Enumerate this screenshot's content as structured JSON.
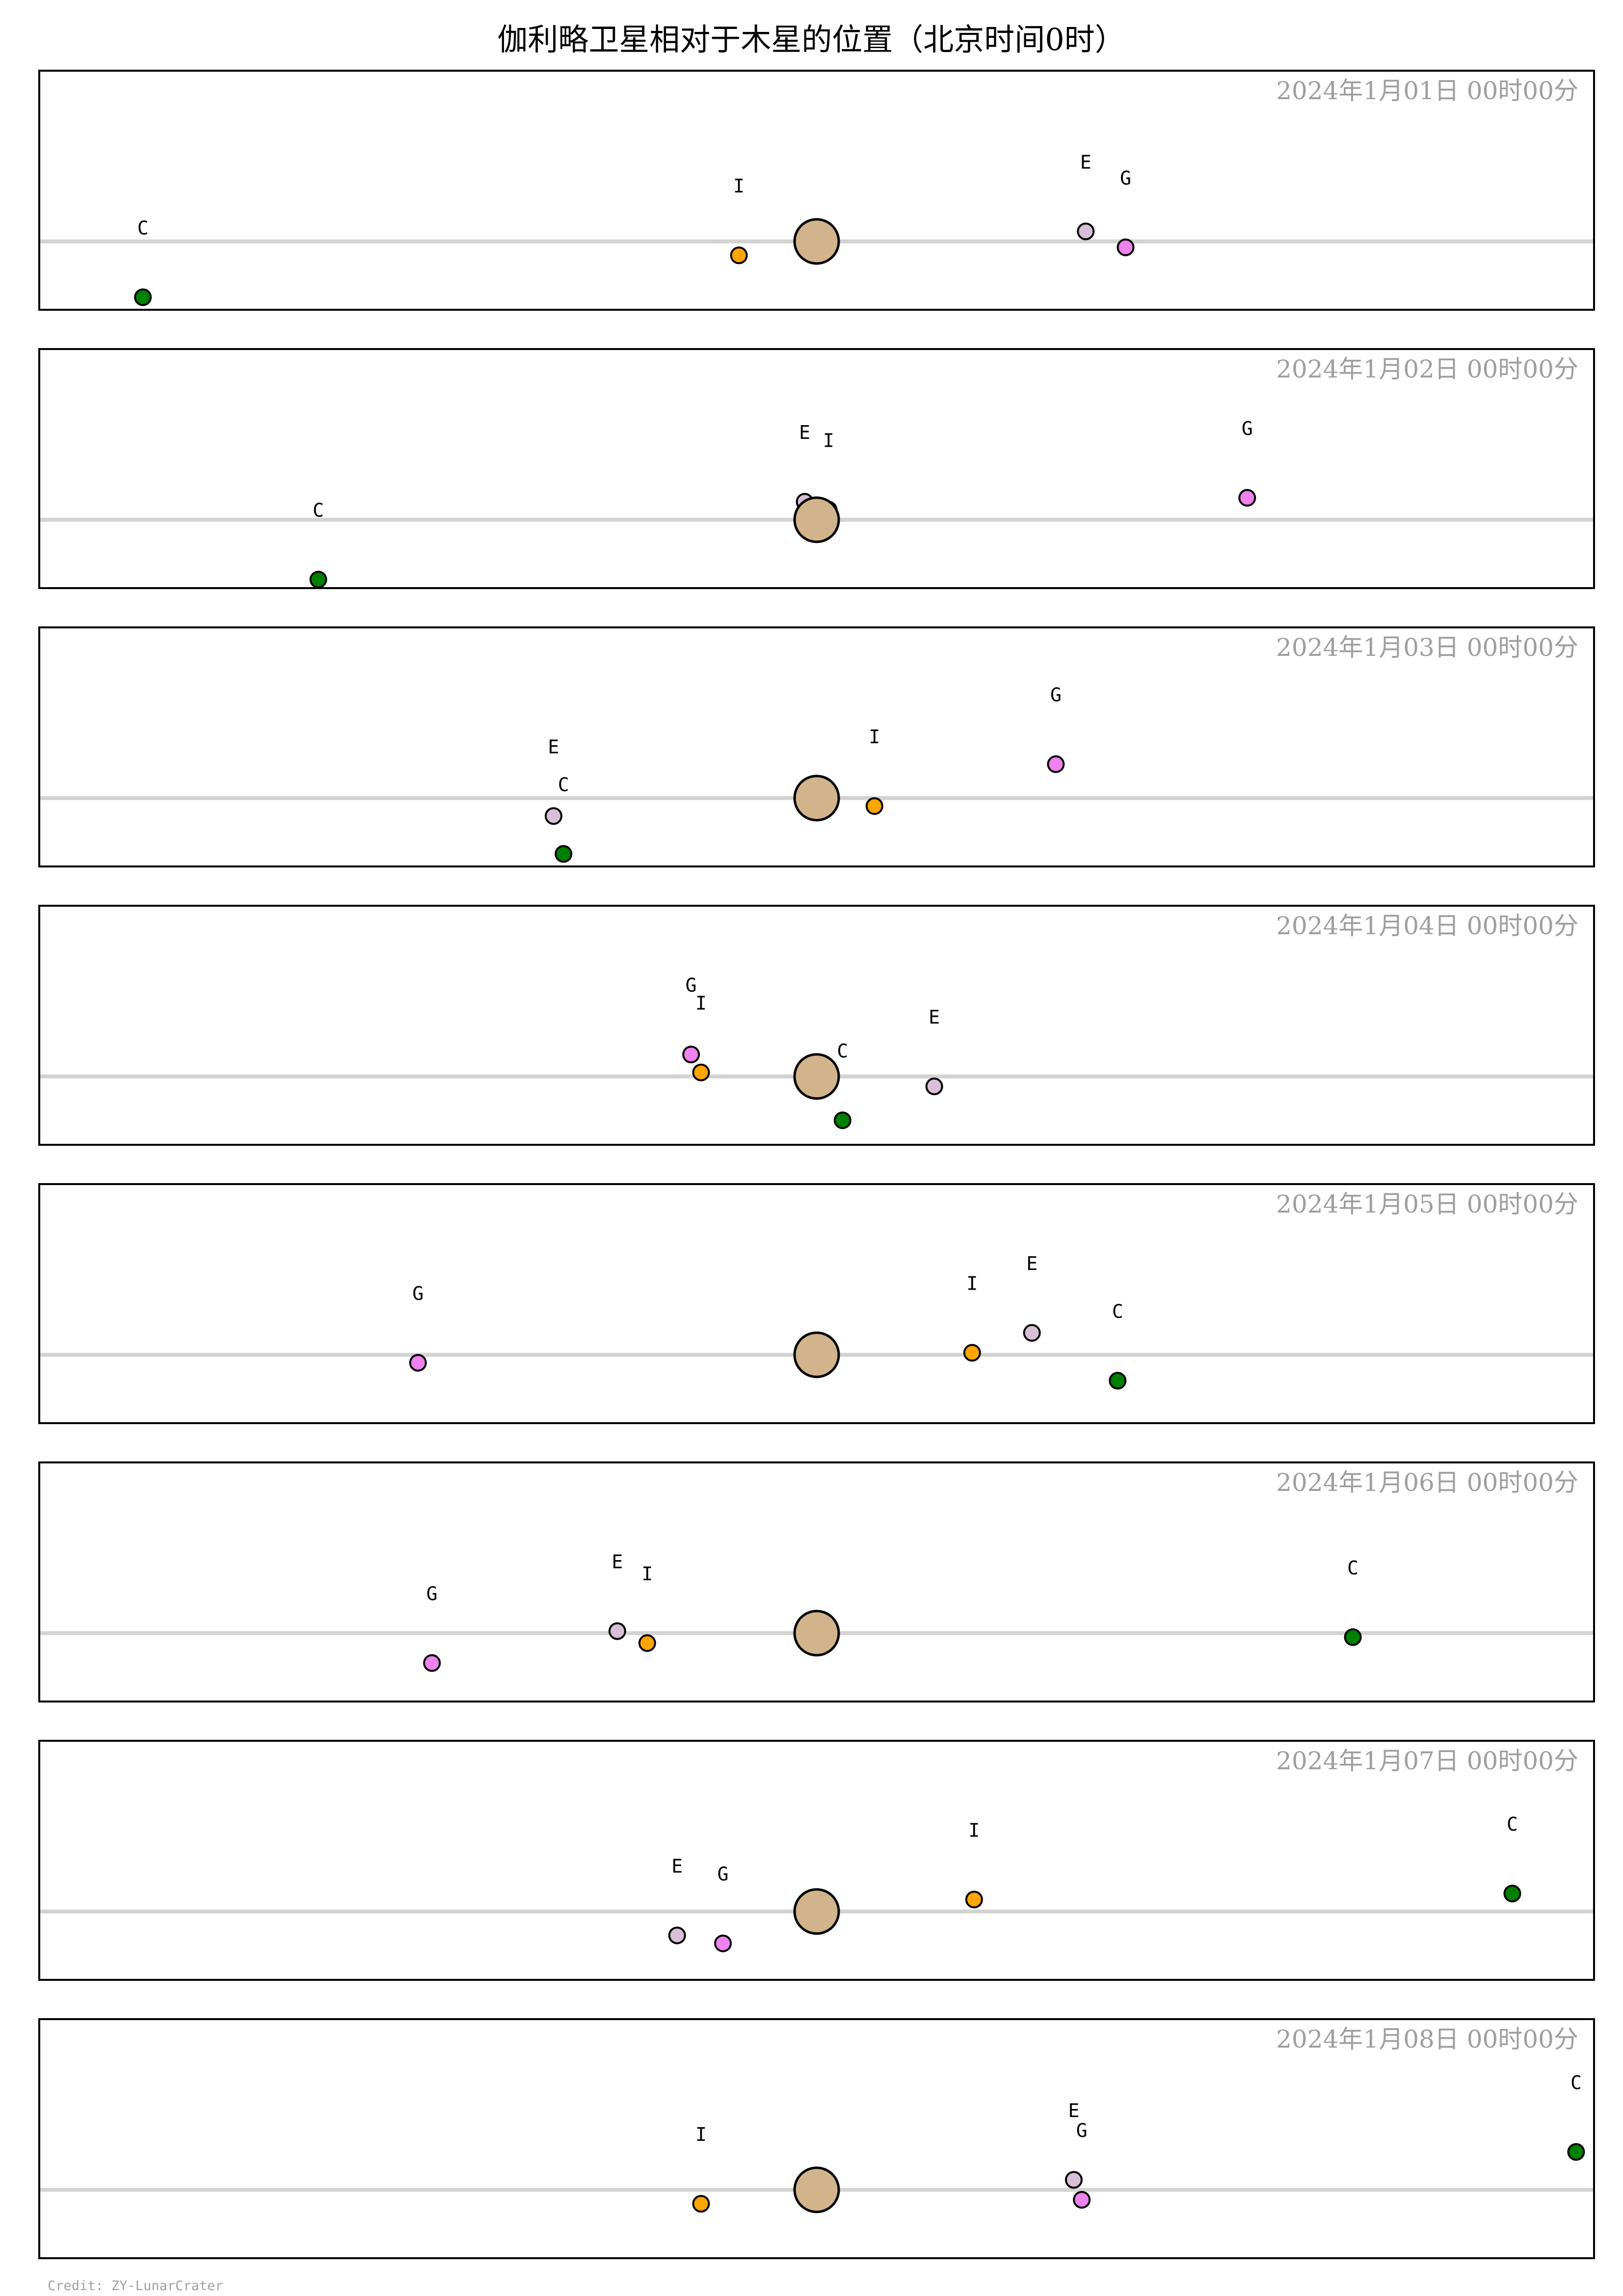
{
  "title": "伽利略卫星相对于木星的位置（北京时间0时）",
  "credit": "Credit: ZY-LunarCrater",
  "colors": {
    "jupiter": "#d2b48c",
    "I": "#ffa500",
    "E": "#d8bfd8",
    "G": "#ee82ee",
    "C": "#008000",
    "equator_line": "#d3d3d3",
    "date": "#9e9e9e"
  },
  "chart_data": {
    "type": "scatter",
    "x_axis": "east-west position relative to Jupiter (Jupiter radii)",
    "xlim": [
      -39,
      39
    ],
    "y_axis": "north-south position relative to Jupiter (Jupiter radii)",
    "ylim": [
      -3.5,
      8.5
    ],
    "grid": false,
    "moons": [
      "I",
      "E",
      "G",
      "C"
    ],
    "panels": [
      {
        "date": "2024年1月01日  00时00分",
        "positions": [
          {
            "moon": "I",
            "x": -3.9,
            "y": -0.7
          },
          {
            "moon": "E",
            "x": 13.5,
            "y": 0.5
          },
          {
            "moon": "G",
            "x": 15.5,
            "y": -0.3
          },
          {
            "moon": "C",
            "x": -33.8,
            "y": -2.8
          }
        ]
      },
      {
        "date": "2024年1月02日  00时00分",
        "positions": [
          {
            "moon": "I",
            "x": 0.6,
            "y": 0.5
          },
          {
            "moon": "E",
            "x": -0.6,
            "y": 0.9
          },
          {
            "moon": "G",
            "x": 21.6,
            "y": 1.1
          },
          {
            "moon": "C",
            "x": -25.0,
            "y": -3.0
          }
        ]
      },
      {
        "date": "2024年1月03日  00时00分",
        "positions": [
          {
            "moon": "I",
            "x": 2.9,
            "y": -0.4
          },
          {
            "moon": "E",
            "x": -13.2,
            "y": -0.9
          },
          {
            "moon": "G",
            "x": 12.0,
            "y": 1.7
          },
          {
            "moon": "C",
            "x": -12.7,
            "y": -2.8
          }
        ]
      },
      {
        "date": "2024年1月04日  00时00分",
        "positions": [
          {
            "moon": "I",
            "x": -5.8,
            "y": 0.2
          },
          {
            "moon": "E",
            "x": 5.9,
            "y": -0.5
          },
          {
            "moon": "G",
            "x": -6.3,
            "y": 1.1
          },
          {
            "moon": "C",
            "x": 1.3,
            "y": -2.2
          }
        ]
      },
      {
        "date": "2024年1月05日  00时00分",
        "positions": [
          {
            "moon": "I",
            "x": 7.8,
            "y": 0.1
          },
          {
            "moon": "E",
            "x": 10.8,
            "y": 1.1
          },
          {
            "moon": "G",
            "x": -20.0,
            "y": -0.4
          },
          {
            "moon": "C",
            "x": 15.1,
            "y": -1.3
          }
        ]
      },
      {
        "date": "2024年1月06日  00时00分",
        "positions": [
          {
            "moon": "I",
            "x": -8.5,
            "y": -0.5
          },
          {
            "moon": "E",
            "x": -10.0,
            "y": 0.1
          },
          {
            "moon": "G",
            "x": -19.3,
            "y": -1.5
          },
          {
            "moon": "C",
            "x": 26.9,
            "y": -0.2
          }
        ]
      },
      {
        "date": "2024年1月07日  00时00分",
        "positions": [
          {
            "moon": "I",
            "x": 7.9,
            "y": 0.6
          },
          {
            "moon": "E",
            "x": -7.0,
            "y": -1.2
          },
          {
            "moon": "G",
            "x": -4.7,
            "y": -1.6
          },
          {
            "moon": "C",
            "x": 34.9,
            "y": 0.9
          }
        ]
      },
      {
        "date": "2024年1月08日  00时00分",
        "positions": [
          {
            "moon": "I",
            "x": -5.8,
            "y": -0.7
          },
          {
            "moon": "E",
            "x": 12.9,
            "y": 0.5
          },
          {
            "moon": "G",
            "x": 13.3,
            "y": -0.5
          },
          {
            "moon": "C",
            "x": 38.1,
            "y": 1.9
          }
        ]
      }
    ]
  }
}
